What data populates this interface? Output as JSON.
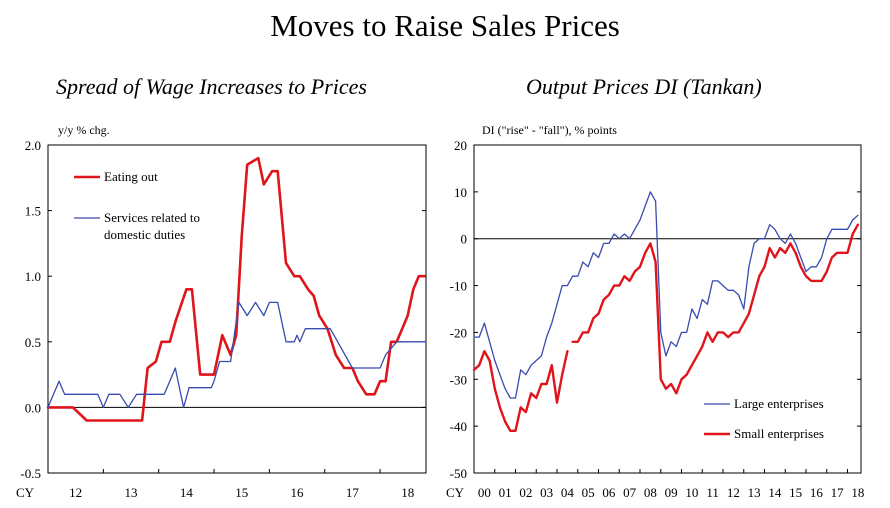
{
  "main_title": "Moves to Raise Sales Prices",
  "colors": {
    "red": "#e0141b",
    "blue": "#3a4bb0",
    "frame": "#000000"
  },
  "chart_data": [
    {
      "type": "line",
      "title": "Spread of Wage Increases to Prices",
      "ylabel": "y/y % chg.",
      "xlabel": "CY",
      "ylim": [
        -0.5,
        2.0
      ],
      "xlim": [
        2012.0,
        2018.83
      ],
      "yticks": [
        "2.0",
        "1.5",
        "1.0",
        "0.5",
        "0.0",
        "-0.5"
      ],
      "ytick_values": [
        2.0,
        1.5,
        1.0,
        0.5,
        0.0,
        -0.5
      ],
      "xticks": [
        "12",
        "13",
        "14",
        "15",
        "16",
        "17",
        "18"
      ],
      "xtick_values": [
        2012.5,
        2013.5,
        2014.5,
        2015.5,
        2016.5,
        2017.5,
        2018.5
      ],
      "x_axis_prefix": "CY",
      "zero_line": 0,
      "legend": [
        {
          "label": "Eating out",
          "color": "#e0141b",
          "series": 0
        },
        {
          "label": "Services related to domestic duties",
          "lines": [
            "Services related to",
            "domestic duties"
          ],
          "color": "#3a4bb0",
          "series": 1
        }
      ],
      "series": [
        {
          "name": "Eating out",
          "color": "#e0141b",
          "width": 2.6,
          "x": [
            2012.0,
            2012.2,
            2012.45,
            2012.7,
            2012.9,
            2013.1,
            2013.2,
            2013.3,
            2013.45,
            2013.55,
            2013.7,
            2013.8,
            2013.95,
            2014.05,
            2014.2,
            2014.3,
            2014.5,
            2014.6,
            2014.75,
            2014.9,
            2015.0,
            2015.15,
            2015.3,
            2015.4,
            2015.5,
            2015.6,
            2015.8,
            2015.9,
            2016.05,
            2016.15,
            2016.3,
            2016.45,
            2016.55,
            2016.7,
            2016.8,
            2016.9,
            2017.05,
            2017.2,
            2017.35,
            2017.5,
            2017.6,
            2017.75,
            2017.9,
            2018.0,
            2018.1,
            2018.2,
            2018.3,
            2018.4,
            2018.5,
            2018.6,
            2018.7,
            2018.8
          ],
          "values": [
            0.0,
            0.0,
            0.0,
            -0.1,
            -0.1,
            -0.1,
            -0.1,
            -0.1,
            -0.1,
            -0.1,
            -0.1,
            0.3,
            0.35,
            0.5,
            0.5,
            0.65,
            0.9,
            0.9,
            0.25,
            0.25,
            0.25,
            0.55,
            0.4,
            0.55,
            1.3,
            1.85,
            1.9,
            1.7,
            1.8,
            1.8,
            1.1,
            1.0,
            1.0,
            0.9,
            0.85,
            0.7,
            0.6,
            0.4,
            0.3,
            0.3,
            0.2,
            0.1,
            0.1,
            0.2,
            0.2,
            0.5,
            0.5,
            0.6,
            0.7,
            0.9,
            1.0,
            1.0
          ]
        },
        {
          "name": "Services related to domestic duties",
          "color": "#3a4bb0",
          "width": 1.3,
          "x": [
            2012.0,
            2012.1,
            2012.2,
            2012.3,
            2012.9,
            2013.0,
            2013.1,
            2013.3,
            2013.45,
            2013.6,
            2014.1,
            2014.2,
            2014.3,
            2014.4,
            2014.45,
            2014.55,
            2014.6,
            2014.95,
            2015.0,
            2015.1,
            2015.3,
            2015.45,
            2015.6,
            2015.75,
            2015.9,
            2016.0,
            2016.15,
            2016.3,
            2016.45,
            2016.5,
            2016.55,
            2016.65,
            2016.8,
            2016.9,
            2017.1,
            2017.5,
            2017.6,
            2017.7,
            2017.9,
            2018.0,
            2018.1,
            2018.3,
            2018.83
          ],
          "values": [
            0.0,
            0.1,
            0.2,
            0.1,
            0.1,
            0.0,
            0.1,
            0.1,
            0.0,
            0.1,
            0.1,
            0.2,
            0.3,
            0.1,
            0.0,
            0.15,
            0.15,
            0.15,
            0.2,
            0.35,
            0.35,
            0.8,
            0.7,
            0.8,
            0.7,
            0.8,
            0.8,
            0.5,
            0.5,
            0.55,
            0.5,
            0.6,
            0.6,
            0.6,
            0.6,
            0.3,
            0.3,
            0.3,
            0.3,
            0.3,
            0.4,
            0.5,
            0.5
          ]
        }
      ]
    },
    {
      "type": "line",
      "title": "Output Prices DI (Tankan)",
      "ylabel": "DI (\"rise\" - \"fall\"), % points",
      "xlabel": "CY",
      "ylim": [
        -50,
        20
      ],
      "xlim": [
        2000.0,
        2018.65
      ],
      "yticks": [
        "20",
        "10",
        "0",
        "-10",
        "-20",
        "-30",
        "-40",
        "-50"
      ],
      "ytick_values": [
        20,
        10,
        0,
        -10,
        -20,
        -30,
        -40,
        -50
      ],
      "xticks": [
        "00",
        "01",
        "02",
        "03",
        "04",
        "05",
        "06",
        "07",
        "08",
        "09",
        "10",
        "11",
        "12",
        "13",
        "14",
        "15",
        "16",
        "17",
        "18"
      ],
      "xtick_values": [
        2000.5,
        2001.5,
        2002.5,
        2003.5,
        2004.5,
        2005.5,
        2006.5,
        2007.5,
        2008.5,
        2009.5,
        2010.5,
        2011.5,
        2012.5,
        2013.5,
        2014.5,
        2015.5,
        2016.5,
        2017.5,
        2018.5
      ],
      "x_axis_prefix": "CY",
      "zero_line": 0,
      "legend": [
        {
          "label": "Large enterprises",
          "color": "#3a4bb0",
          "series": 0
        },
        {
          "label": "Small enterprises",
          "color": "#e0141b",
          "series": 1
        }
      ],
      "series": [
        {
          "name": "Large enterprises",
          "color": "#3a4bb0",
          "width": 1.3,
          "x": [
            2000.0,
            2000.25,
            2000.5,
            2000.75,
            2001.0,
            2001.25,
            2001.5,
            2001.75,
            2002.0,
            2002.25,
            2002.5,
            2002.75,
            2003.0,
            2003.25,
            2003.5,
            2003.75,
            2004.0,
            2004.25,
            2004.5,
            2004.75,
            2005.0,
            2005.25,
            2005.5,
            2005.75,
            2006.0,
            2006.25,
            2006.5,
            2006.75,
            2007.0,
            2007.25,
            2007.5,
            2007.75,
            2008.0,
            2008.25,
            2008.5,
            2008.75,
            2009.0,
            2009.25,
            2009.5,
            2009.75,
            2010.0,
            2010.25,
            2010.5,
            2010.75,
            2011.0,
            2011.25,
            2011.5,
            2011.75,
            2012.0,
            2012.25,
            2012.5,
            2012.75,
            2013.0,
            2013.25,
            2013.5,
            2013.75,
            2014.0,
            2014.25,
            2014.5,
            2014.75,
            2015.0,
            2015.25,
            2015.5,
            2015.75,
            2016.0,
            2016.25,
            2016.5,
            2016.75,
            2017.0,
            2017.25,
            2017.5,
            2017.75,
            2018.0,
            2018.25,
            2018.5
          ],
          "values": [
            -21,
            -21,
            -18,
            -22,
            -26,
            -29,
            -32,
            -34,
            -34,
            -28,
            -29,
            -27,
            -26,
            -25,
            -21,
            -18,
            -14,
            -10,
            -10,
            -8,
            -8,
            -5,
            -6,
            -3,
            -4,
            -1,
            -1,
            1,
            0,
            1,
            0,
            2,
            4,
            7,
            10,
            8,
            -20,
            -25,
            -22,
            -23,
            -20,
            -20,
            -15,
            -17,
            -13,
            -14,
            -9,
            -9,
            -10,
            -11,
            -11,
            -12,
            -15,
            -6,
            -1,
            0,
            0,
            3,
            2,
            0,
            -1,
            1,
            -1,
            -4,
            -7,
            -6,
            -6,
            -4,
            0,
            2,
            2,
            2,
            2,
            4,
            5
          ]
        },
        {
          "name": "Small enterprises",
          "color": "#e0141b",
          "width": 2.4,
          "segments": [
            [
              0,
              18
            ],
            [
              19,
              74
            ]
          ],
          "x": [
            2000.0,
            2000.25,
            2000.5,
            2000.75,
            2001.0,
            2001.25,
            2001.5,
            2001.75,
            2002.0,
            2002.25,
            2002.5,
            2002.75,
            2003.0,
            2003.25,
            2003.5,
            2003.75,
            2004.0,
            2004.25,
            2004.5,
            2004.75,
            2005.0,
            2005.25,
            2005.5,
            2005.75,
            2006.0,
            2006.25,
            2006.5,
            2006.75,
            2007.0,
            2007.25,
            2007.5,
            2007.75,
            2008.0,
            2008.25,
            2008.5,
            2008.75,
            2009.0,
            2009.25,
            2009.5,
            2009.75,
            2010.0,
            2010.25,
            2010.5,
            2010.75,
            2011.0,
            2011.25,
            2011.5,
            2011.75,
            2012.0,
            2012.25,
            2012.5,
            2012.75,
            2013.0,
            2013.25,
            2013.5,
            2013.75,
            2014.0,
            2014.25,
            2014.5,
            2014.75,
            2015.0,
            2015.25,
            2015.5,
            2015.75,
            2016.0,
            2016.25,
            2016.5,
            2016.75,
            2017.0,
            2017.25,
            2017.5,
            2017.75,
            2018.0,
            2018.25,
            2018.5
          ],
          "values": [
            -28,
            -27,
            -24,
            -26,
            -32,
            -36,
            -39,
            -41,
            -41,
            -36,
            -37,
            -33,
            -34,
            -31,
            -31,
            -27,
            -35,
            -29,
            -24,
            -22,
            -22,
            -20,
            -20,
            -17,
            -16,
            -13,
            -12,
            -10,
            -10,
            -8,
            -9,
            -7,
            -6,
            -3,
            -1,
            -5,
            -30,
            -32,
            -31,
            -33,
            -30,
            -29,
            -27,
            -25,
            -23,
            -20,
            -22,
            -20,
            -20,
            -21,
            -20,
            -20,
            -18,
            -16,
            -12,
            -8,
            -6,
            -2,
            -4,
            -2,
            -3,
            -1,
            -3,
            -6,
            -8,
            -9,
            -9,
            -9,
            -7,
            -4,
            -3,
            -3,
            -3,
            1,
            3
          ]
        }
      ]
    }
  ]
}
